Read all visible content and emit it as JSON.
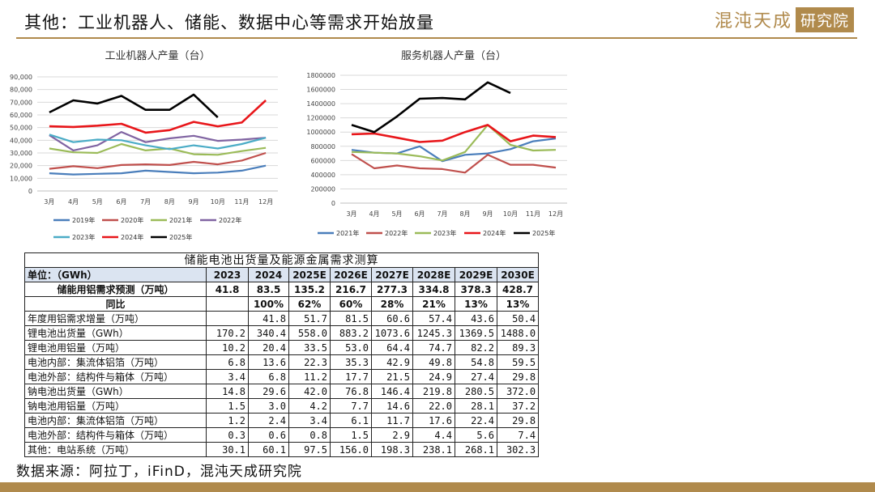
{
  "header": {
    "title": "其他：工业机器人、储能、数据中心等需求开始放量",
    "logo_text": "混沌天成",
    "logo_box": "研究院"
  },
  "chart_data": [
    {
      "type": "line",
      "title": "工业机器人产量（台）",
      "categories": [
        "3月",
        "4月",
        "5月",
        "6月",
        "7月",
        "8月",
        "9月",
        "10月",
        "11月",
        "12月"
      ],
      "ylim": [
        0,
        90000
      ],
      "yticks": [
        0,
        10000,
        20000,
        30000,
        40000,
        50000,
        60000,
        70000,
        80000,
        90000
      ],
      "ytick_labels": [
        "0",
        "10,000",
        "20,000",
        "30,000",
        "40,000",
        "50,000",
        "60,000",
        "70,000",
        "80,000",
        "90,000"
      ],
      "legend_position": "bottom",
      "series": [
        {
          "name": "2019年",
          "color": "#4a7ebb",
          "values": [
            14000,
            13000,
            13500,
            14000,
            16000,
            15000,
            14000,
            14500,
            16000,
            20000
          ]
        },
        {
          "name": "2020年",
          "color": "#c0504d",
          "values": [
            17500,
            19500,
            18000,
            20500,
            21000,
            20500,
            23000,
            21000,
            24000,
            30000
          ]
        },
        {
          "name": "2021年",
          "color": "#9bbb59",
          "values": [
            33500,
            30500,
            30000,
            37000,
            32000,
            33500,
            29000,
            28500,
            31500,
            34000
          ]
        },
        {
          "name": "2022年",
          "color": "#8064a2",
          "values": [
            44000,
            32000,
            36000,
            46500,
            38500,
            41500,
            43500,
            39500,
            40500,
            42000
          ]
        },
        {
          "name": "2023年",
          "color": "#4bacc6",
          "values": [
            44500,
            38500,
            40500,
            40000,
            36000,
            33000,
            36000,
            33500,
            37000,
            42000
          ]
        },
        {
          "name": "2024年",
          "color": "#e8161a",
          "values": [
            51000,
            50500,
            51500,
            53000,
            46000,
            48000,
            54500,
            51000,
            54000,
            71500
          ]
        },
        {
          "name": "2025年",
          "color": "#000000",
          "values": [
            62000,
            71500,
            69000,
            75000,
            64000,
            64000,
            76000,
            58000,
            null,
            null
          ]
        }
      ]
    },
    {
      "type": "line",
      "title": "服务机器人产量（台）",
      "categories": [
        "3月",
        "4月",
        "5月",
        "6月",
        "7月",
        "8月",
        "9月",
        "10月",
        "11月",
        "12月"
      ],
      "ylim": [
        0,
        1800000
      ],
      "yticks": [
        0,
        200000,
        400000,
        600000,
        800000,
        1000000,
        1200000,
        1400000,
        1600000,
        1800000
      ],
      "ytick_labels": [
        "0",
        "200000",
        "400000",
        "600000",
        "800000",
        "1000000",
        "1200000",
        "1400000",
        "1600000",
        "1800000"
      ],
      "legend_position": "bottom",
      "series": [
        {
          "name": "2021年",
          "color": "#4a7ebb",
          "values": [
            750000,
            710000,
            700000,
            800000,
            590000,
            680000,
            700000,
            760000,
            870000,
            910000
          ]
        },
        {
          "name": "2022年",
          "color": "#c0504d",
          "values": [
            690000,
            490000,
            530000,
            490000,
            480000,
            430000,
            680000,
            540000,
            540000,
            500000
          ]
        },
        {
          "name": "2023年",
          "color": "#9bbb59",
          "values": [
            720000,
            710000,
            700000,
            660000,
            600000,
            720000,
            1100000,
            820000,
            740000,
            750000
          ]
        },
        {
          "name": "2024年",
          "color": "#e8161a",
          "values": [
            970000,
            980000,
            920000,
            860000,
            880000,
            1000000,
            1100000,
            870000,
            950000,
            930000
          ]
        },
        {
          "name": "2025年",
          "color": "#000000",
          "values": [
            1100000,
            1000000,
            1220000,
            1470000,
            1480000,
            1460000,
            1700000,
            1550000,
            null,
            null
          ]
        }
      ]
    },
    {
      "type": "table",
      "title": "储能电池出货量及能源金属需求测算",
      "header": [
        "单位：（GWh）",
        "2023",
        "2024",
        "2025E",
        "2026E",
        "2027E",
        "2028E",
        "2029E",
        "2030E"
      ],
      "rows": [
        {
          "label": "储能用铝需求预测（万吨）",
          "cells": [
            "41.8",
            "83.5",
            "135.2",
            "216.7",
            "277.3",
            "334.8",
            "378.3",
            "428.7"
          ],
          "bold": true,
          "center": true
        },
        {
          "label": "同比",
          "cells": [
            "",
            "100%",
            "62%",
            "60%",
            "28%",
            "21%",
            "13%",
            "13%"
          ],
          "bold": true,
          "center": true
        },
        {
          "label": "年度用铝需求增量（万吨）",
          "cells": [
            "",
            "41.8",
            "51.7",
            "81.5",
            "60.6",
            "57.4",
            "43.6",
            "50.4"
          ]
        },
        {
          "label": "锂电池出货量（GWh）",
          "cells": [
            "170.2",
            "340.4",
            "558.0",
            "883.2",
            "1073.6",
            "1245.3",
            "1369.5",
            "1488.0"
          ]
        },
        {
          "label": "锂电池用铝量（万吨）",
          "cells": [
            "10.2",
            "20.4",
            "33.5",
            "53.0",
            "64.4",
            "74.7",
            "82.2",
            "89.3"
          ]
        },
        {
          "label": "电池内部：集流体铝箔（万吨）",
          "cells": [
            "6.8",
            "13.6",
            "22.3",
            "35.3",
            "42.9",
            "49.8",
            "54.8",
            "59.5"
          ]
        },
        {
          "label": "电池外部：结构件与箱体（万吨）",
          "cells": [
            "3.4",
            "6.8",
            "11.2",
            "17.7",
            "21.5",
            "24.9",
            "27.4",
            "29.8"
          ]
        },
        {
          "label": "钠电池出货量（GWh）",
          "cells": [
            "14.8",
            "29.6",
            "42.0",
            "76.8",
            "146.4",
            "219.8",
            "280.5",
            "372.0"
          ]
        },
        {
          "label": "钠电池用铝量（万吨）",
          "cells": [
            "1.5",
            "3.0",
            "4.2",
            "7.7",
            "14.6",
            "22.0",
            "28.1",
            "37.2"
          ]
        },
        {
          "label": "电池内部：集流体铝箔（万吨）",
          "cells": [
            "1.2",
            "2.4",
            "3.4",
            "6.1",
            "11.7",
            "17.6",
            "22.4",
            "29.8"
          ]
        },
        {
          "label": "电池外部：结构件与箱体（万吨）",
          "cells": [
            "0.3",
            "0.6",
            "0.8",
            "1.5",
            "2.9",
            "4.4",
            "5.6",
            "7.4"
          ]
        },
        {
          "label": "其他：电站系统（万吨）",
          "cells": [
            "30.1",
            "60.1",
            "97.5",
            "156.0",
            "198.3",
            "238.1",
            "268.1",
            "302.3"
          ]
        }
      ]
    }
  ],
  "footer": {
    "source": "数据来源：阿拉丁，iFinD，混沌天成研究院"
  }
}
